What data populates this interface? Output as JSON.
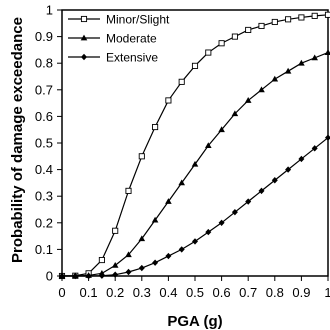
{
  "chart_data": {
    "type": "line",
    "title": "",
    "xlabel": "PGA (g)",
    "ylabel": "Probability of damage exceedance",
    "xlim": [
      0,
      1
    ],
    "ylim": [
      0,
      1
    ],
    "x_ticks": [
      "0",
      "0.1",
      "0.2",
      "0.3",
      "0.4",
      "0.5",
      "0.6",
      "0.7",
      "0.8",
      "0.9",
      "1"
    ],
    "y_ticks": [
      "0",
      "0.1",
      "0.2",
      "0.3",
      "0.4",
      "0.5",
      "0.6",
      "0.7",
      "0.8",
      "0.9",
      "1"
    ],
    "grid": false,
    "legend_position": "top-left",
    "x": [
      0.0,
      0.05,
      0.1,
      0.15,
      0.2,
      0.25,
      0.3,
      0.35,
      0.4,
      0.45,
      0.5,
      0.55,
      0.6,
      0.65,
      0.7,
      0.75,
      0.8,
      0.85,
      0.9,
      0.95,
      1.0
    ],
    "series": [
      {
        "name": "Minor/Slight",
        "marker": "square",
        "values": [
          0.0,
          0.001,
          0.01,
          0.06,
          0.17,
          0.32,
          0.45,
          0.56,
          0.66,
          0.73,
          0.79,
          0.84,
          0.875,
          0.9,
          0.925,
          0.94,
          0.955,
          0.965,
          0.972,
          0.978,
          0.982
        ]
      },
      {
        "name": "Moderate",
        "marker": "triangle",
        "values": [
          0.0,
          0.0,
          0.002,
          0.01,
          0.04,
          0.08,
          0.14,
          0.21,
          0.28,
          0.35,
          0.42,
          0.49,
          0.55,
          0.61,
          0.66,
          0.7,
          0.74,
          0.77,
          0.8,
          0.82,
          0.84
        ]
      },
      {
        "name": "Extensive",
        "marker": "diamond",
        "values": [
          0.0,
          0.0,
          0.0,
          0.001,
          0.005,
          0.015,
          0.03,
          0.05,
          0.075,
          0.1,
          0.13,
          0.165,
          0.2,
          0.24,
          0.28,
          0.32,
          0.36,
          0.4,
          0.44,
          0.48,
          0.52
        ]
      }
    ]
  }
}
